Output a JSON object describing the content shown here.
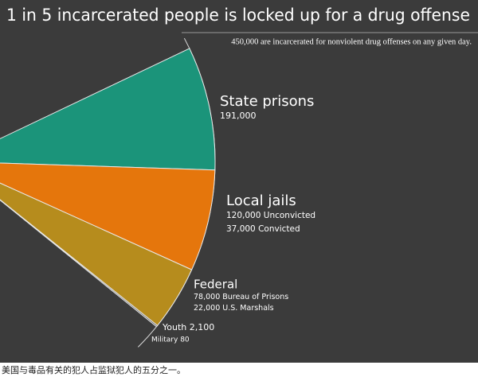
{
  "chart_data": {
    "type": "pie",
    "title": "1 in 5 incarcerated people is locked up for a drug offense",
    "subtitle": "450,000 are incarcerated for nonviolent drug offenses on any given day.",
    "series": [
      {
        "name": "State prisons",
        "color": "#1b947a",
        "values": [
          191000
        ],
        "value_labels": [
          "191,000"
        ]
      },
      {
        "name": "Local jails",
        "color": "#e5760c",
        "values": [
          120000,
          37000
        ],
        "value_labels": [
          "120,000 Unconvicted",
          "37,000 Convicted"
        ]
      },
      {
        "name": "Federal",
        "color": "#b68c1d",
        "values": [
          78000,
          22000
        ],
        "value_labels": [
          "78,000 Bureau of Prisons",
          "22,000 U.S. Marshals"
        ]
      },
      {
        "color": "#5a5a5a",
        "values": [
          2100,
          80
        ],
        "value_labels": [
          "Youth 2,100",
          "Military 80"
        ]
      }
    ]
  },
  "caption": "美国与毒品有关的犯人占监狱犯人的五分之一。"
}
